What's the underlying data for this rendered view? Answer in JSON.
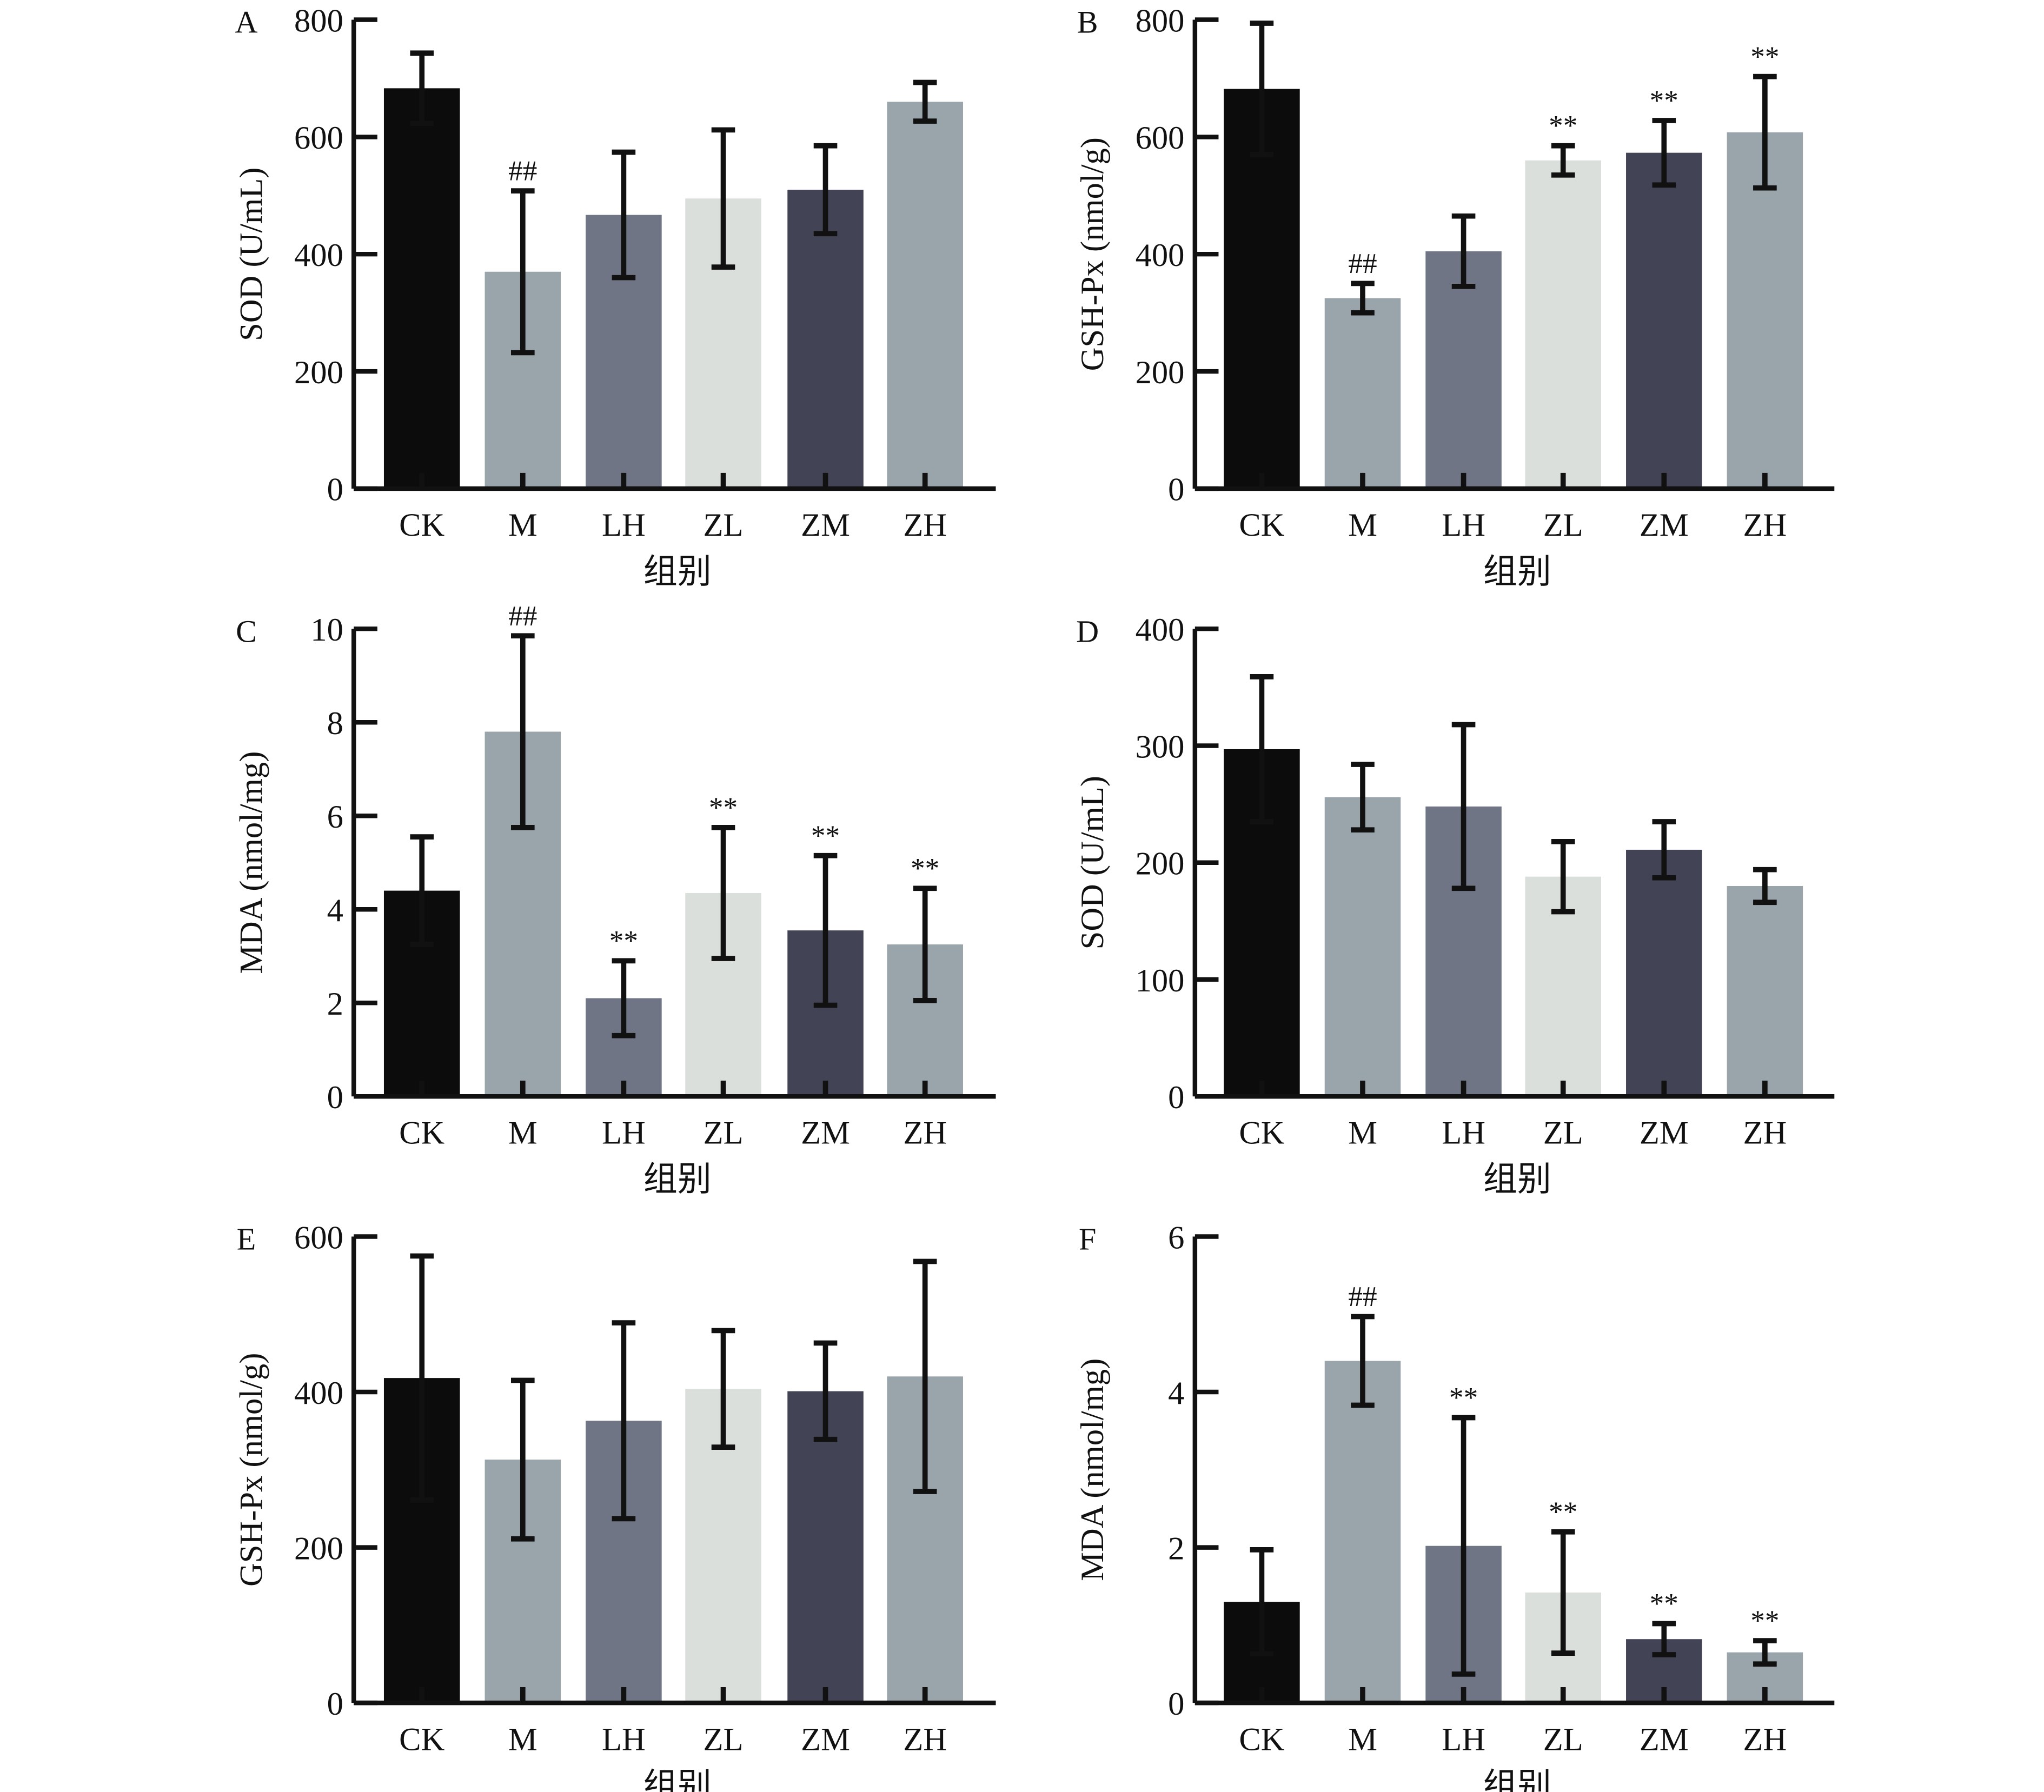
{
  "colors": {
    "CK": "#0b0c0b",
    "M": "#9aa5ab",
    "LH": "#6f7584",
    "ZL": "#dadfdb",
    "ZM": "#434356",
    "ZH": "#9aa5ab",
    "axis": "#111111"
  },
  "chart_data": [
    {
      "panel": "A",
      "type": "bar",
      "categories": [
        "CK",
        "M",
        "LH",
        "ZL",
        "ZM",
        "ZH"
      ],
      "values": [
        683,
        370,
        467,
        495,
        510,
        660
      ],
      "errors": [
        60,
        138,
        107,
        117,
        75,
        33
      ],
      "annotations": [
        "",
        "##",
        "",
        "",
        "",
        ""
      ],
      "ylabel": "SOD (U/mL)",
      "xlabel": "组别",
      "ylim": [
        0,
        800
      ],
      "yticks": [
        0,
        200,
        400,
        600,
        800
      ],
      "grid": false
    },
    {
      "panel": "B",
      "type": "bar",
      "categories": [
        "CK",
        "M",
        "LH",
        "ZL",
        "ZM",
        "ZH"
      ],
      "values": [
        682,
        325,
        405,
        560,
        573,
        608
      ],
      "errors": [
        112,
        25,
        60,
        25,
        55,
        95
      ],
      "annotations": [
        "",
        "##",
        "",
        "**",
        "**",
        "**"
      ],
      "ylabel": "GSH-Px (nmol/g)",
      "xlabel": "组别",
      "ylim": [
        0,
        800
      ],
      "yticks": [
        0,
        200,
        400,
        600,
        800
      ],
      "grid": false
    },
    {
      "panel": "C",
      "type": "bar",
      "categories": [
        "CK",
        "M",
        "LH",
        "ZL",
        "ZM",
        "ZH"
      ],
      "values": [
        4.4,
        7.8,
        2.1,
        4.35,
        3.55,
        3.25
      ],
      "errors": [
        1.15,
        2.05,
        0.8,
        1.4,
        1.6,
        1.2
      ],
      "annotations": [
        "",
        "##",
        "**",
        "**",
        "**",
        "**"
      ],
      "ylabel": "MDA (nmol/mg)",
      "xlabel": "组别",
      "ylim": [
        0,
        10
      ],
      "yticks": [
        0,
        2,
        4,
        6,
        8,
        10
      ],
      "grid": false
    },
    {
      "panel": "D",
      "type": "bar",
      "categories": [
        "CK",
        "M",
        "LH",
        "ZL",
        "ZM",
        "ZH"
      ],
      "values": [
        297,
        256,
        248,
        188,
        211,
        180
      ],
      "errors": [
        62,
        28,
        70,
        30,
        24,
        14
      ],
      "annotations": [
        "",
        "",
        "",
        "",
        "",
        ""
      ],
      "ylabel": "SOD (U/mL)",
      "xlabel": "组别",
      "ylim": [
        0,
        400
      ],
      "yticks": [
        0,
        100,
        200,
        300,
        400
      ],
      "grid": false
    },
    {
      "panel": "E",
      "type": "bar",
      "categories": [
        "CK",
        "M",
        "LH",
        "ZL",
        "ZM",
        "ZH"
      ],
      "values": [
        418,
        313,
        363,
        404,
        401,
        420
      ],
      "errors": [
        157,
        102,
        126,
        75,
        62,
        148
      ],
      "annotations": [
        "",
        "",
        "",
        "",
        "",
        ""
      ],
      "ylabel": "GSH-Px (nmol/g)",
      "xlabel": "组别",
      "ylim": [
        0,
        600
      ],
      "yticks": [
        0,
        200,
        400,
        600
      ],
      "grid": false
    },
    {
      "panel": "F",
      "type": "bar",
      "categories": [
        "CK",
        "M",
        "LH",
        "ZL",
        "ZM",
        "ZH"
      ],
      "values": [
        1.3,
        4.4,
        2.02,
        1.42,
        0.82,
        0.65
      ],
      "errors": [
        0.67,
        0.57,
        1.65,
        0.78,
        0.2,
        0.15
      ],
      "annotations": [
        "",
        "##",
        "**",
        "**",
        "**",
        "**"
      ],
      "ylabel": "MDA (nmol/mg)",
      "xlabel": "组别",
      "ylim": [
        0,
        6
      ],
      "yticks": [
        0,
        2,
        4,
        6
      ],
      "grid": false
    }
  ]
}
